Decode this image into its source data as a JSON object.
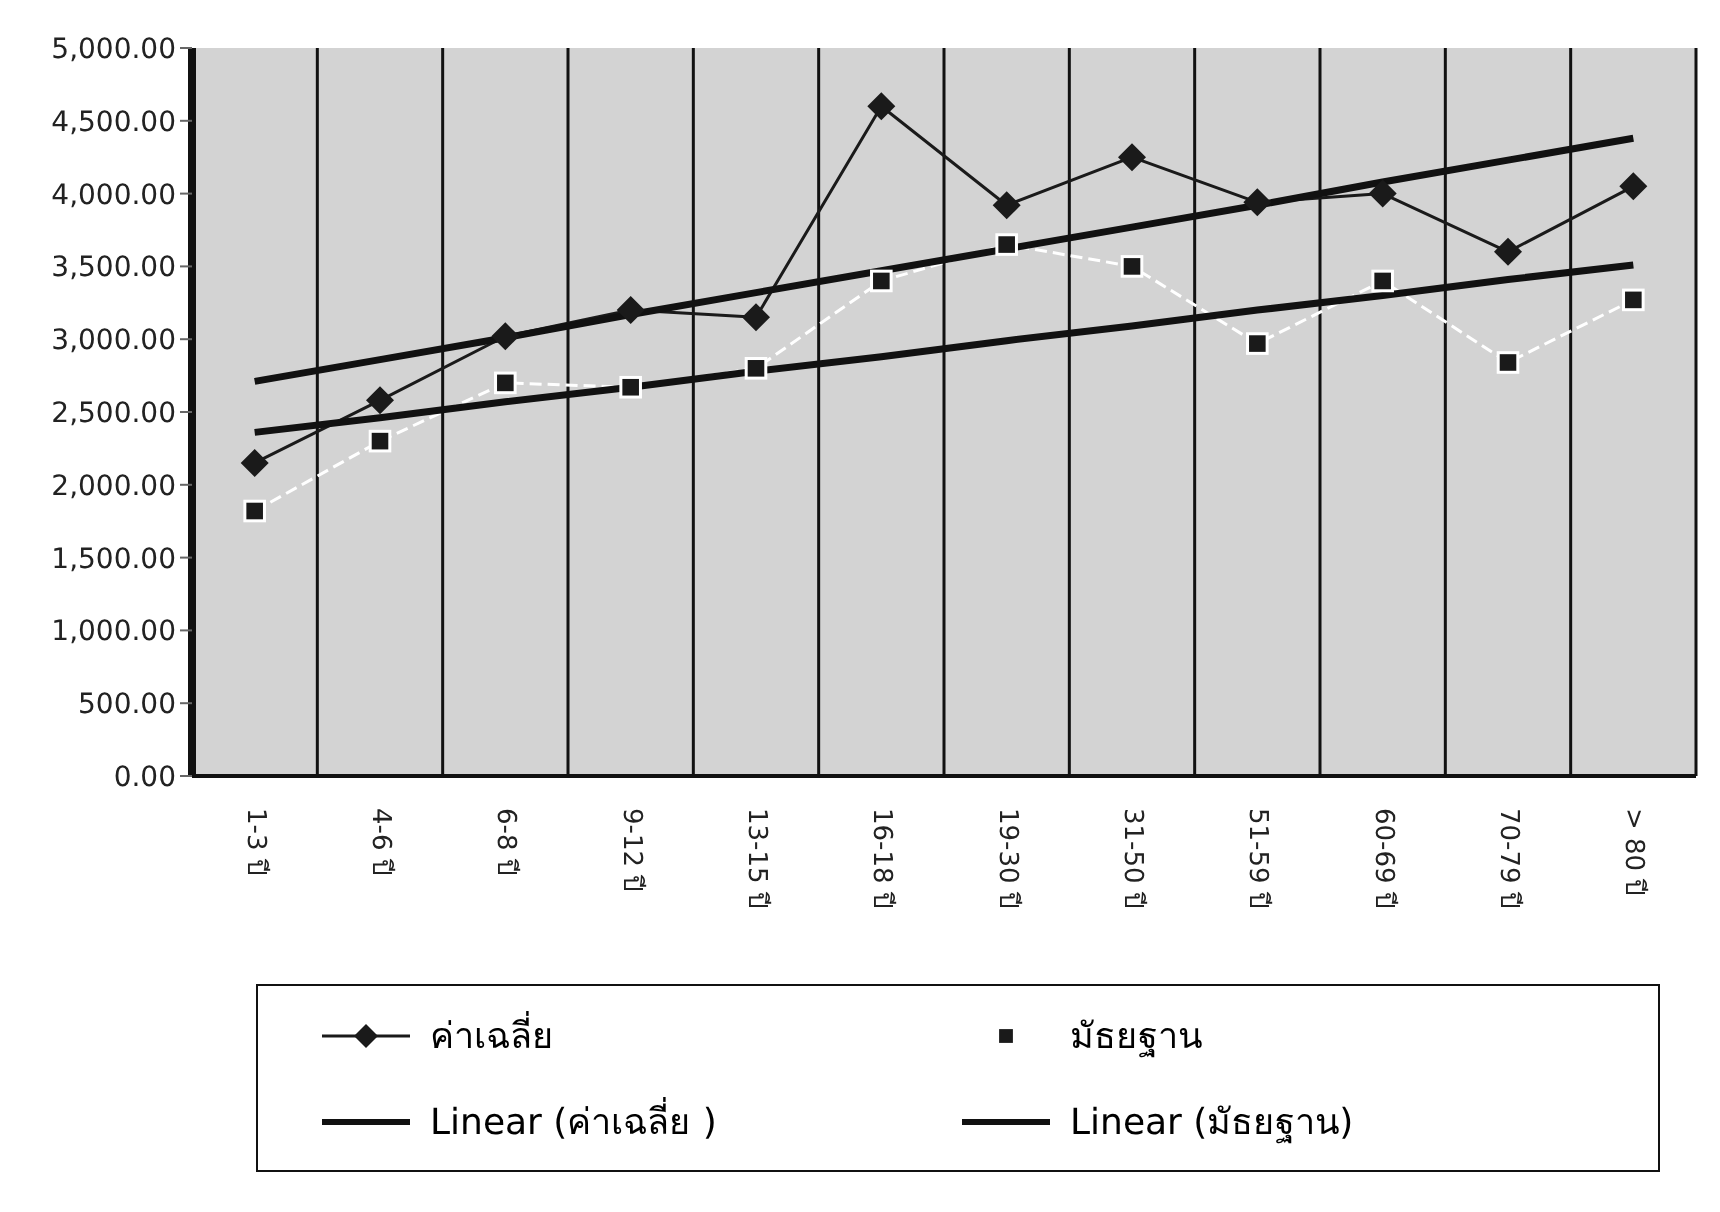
{
  "chart_data": {
    "type": "line",
    "categories": [
      "1-3 ปี",
      "4-6 ปี",
      "6-8 ปี",
      "9-12 ปี",
      "13-15 ปี",
      "16-18 ปี",
      "19-30 ปี",
      "31-50 ปี",
      "51-59 ปี",
      "60-69 ปี",
      "70-79 ปี",
      "> 80 ปี"
    ],
    "series": [
      {
        "name": "ค่าเฉลี่ย",
        "color": "#1a1a1a",
        "marker": "diamond",
        "values": [
          2150,
          2580,
          3020,
          3200,
          3150,
          4600,
          3920,
          4250,
          3940,
          4000,
          3600,
          4050
        ]
      },
      {
        "name": "มัธยฐาน",
        "color": "#ffffff",
        "marker": "square",
        "line_style": "dashed",
        "values": [
          1820,
          2300,
          2700,
          2670,
          2800,
          3400,
          3650,
          3500,
          2970,
          3400,
          2840,
          3270
        ]
      },
      {
        "name": "Linear (ค่าเฉลี่ย )",
        "color": "#111111",
        "marker": "none",
        "values": [
          2710,
          2860,
          3010,
          3170,
          3320,
          3470,
          3620,
          3770,
          3920,
          4080,
          4230,
          4380
        ]
      },
      {
        "name": "Linear (มัธยฐาน)",
        "color": "#111111",
        "marker": "none",
        "values": [
          2360,
          2460,
          2570,
          2670,
          2780,
          2880,
          2990,
          3090,
          3200,
          3300,
          3410,
          3510
        ]
      }
    ],
    "ylim": [
      0,
      5000
    ],
    "yticks": [
      {
        "value": 0,
        "label": "0.00"
      },
      {
        "value": 500,
        "label": "500.00"
      },
      {
        "value": 1000,
        "label": "1,000.00"
      },
      {
        "value": 1500,
        "label": "1,500.00"
      },
      {
        "value": 2000,
        "label": "2,000.00"
      },
      {
        "value": 2500,
        "label": "2,500.00"
      },
      {
        "value": 3000,
        "label": "3,000.00"
      },
      {
        "value": 3500,
        "label": "3,500.00"
      },
      {
        "value": 4000,
        "label": "4,000.00"
      },
      {
        "value": 4500,
        "label": "4,500.00"
      },
      {
        "value": 5000,
        "label": "5,000.00"
      }
    ],
    "grid": "x",
    "legend": "bottom"
  }
}
